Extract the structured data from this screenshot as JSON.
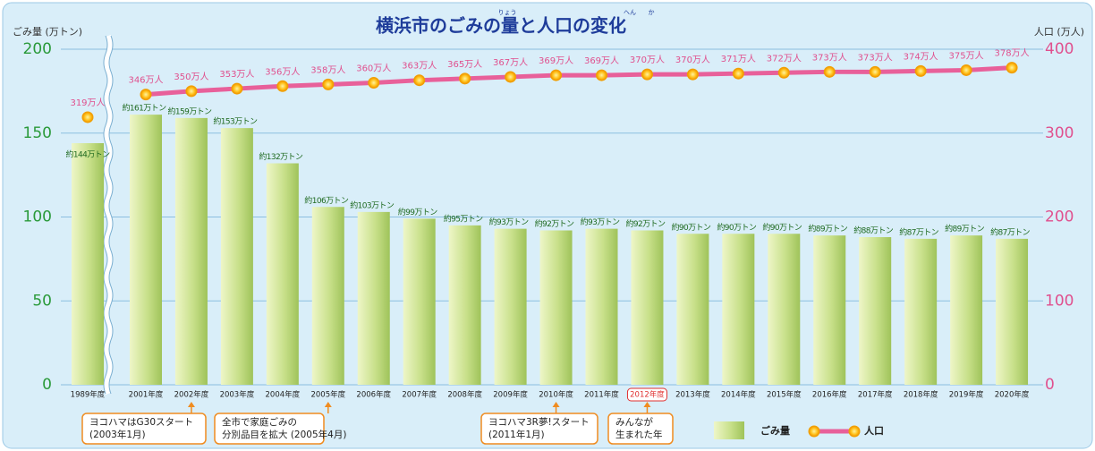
{
  "chart_data": {
    "type": "bar",
    "title": "横浜市のごみの量と人口の変化",
    "title_ruby": [
      "りょう",
      "へん",
      "か"
    ],
    "y_label": "ごみ量 (万トン)",
    "y2_label": "人口 (万人)",
    "categories": [
      "1989年度",
      "2001年度",
      "2002年度",
      "2003年度",
      "2004年度",
      "2005年度",
      "2006年度",
      "2007年度",
      "2008年度",
      "2009年度",
      "2010年度",
      "2011年度",
      "2012年度",
      "2013年度",
      "2014年度",
      "2015年度",
      "2016年度",
      "2017年度",
      "2018年度",
      "2019年度",
      "2020年度"
    ],
    "series": [
      {
        "name": "ごみ量",
        "color": "#c8e08a",
        "values": [
          144,
          161,
          159,
          153,
          132,
          106,
          103,
          99,
          95,
          93,
          92,
          93,
          92,
          90,
          90,
          90,
          89,
          88,
          87,
          89,
          87
        ],
        "value_labels": [
          "約144万トン",
          "約161万トン",
          "約159万トン",
          "約153万トン",
          "約132万トン",
          "約106万トン",
          "約103万トン",
          "約99万トン",
          "約95万トン",
          "約93万トン",
          "約92万トン",
          "約93万トン",
          "約92万トン",
          "約90万トン",
          "約90万トン",
          "約90万トン",
          "約89万トン",
          "約88万トン",
          "約87万トン",
          "約89万トン",
          "約87万トン"
        ]
      },
      {
        "name": "人口",
        "color": "#e8609a",
        "axis": "y2",
        "values": [
          319,
          346,
          350,
          353,
          356,
          358,
          360,
          363,
          365,
          367,
          369,
          369,
          370,
          370,
          371,
          372,
          373,
          373,
          374,
          375,
          378
        ],
        "value_labels": [
          "319万人",
          "346万人",
          "350万人",
          "353万人",
          "356万人",
          "358万人",
          "360万人",
          "363万人",
          "365万人",
          "367万人",
          "369万人",
          "369万人",
          "370万人",
          "370万人",
          "371万人",
          "372万人",
          "373万人",
          "373万人",
          "374万人",
          "375万人",
          "378万人"
        ]
      }
    ],
    "ylim": [
      0,
      200
    ],
    "yticks": [
      0,
      50,
      100,
      150,
      200
    ],
    "y2lim": [
      0,
      400
    ],
    "y2ticks": [
      0,
      100,
      200,
      300,
      400
    ],
    "grid": true,
    "highlight_category": 12,
    "annotations": [
      {
        "category": 2,
        "lines": [
          "ヨコハマはG30スタート",
          "(2003年1月)"
        ]
      },
      {
        "category": 5,
        "lines": [
          "全市で家庭ごみの",
          "分別品目を拡大 (2005年4月)"
        ]
      },
      {
        "category": 10,
        "lines": [
          "ヨコハマ3R夢!スタート",
          "(2011年1月)"
        ]
      },
      {
        "category": 12,
        "lines": [
          "みんなが",
          "生まれた年"
        ]
      }
    ]
  }
}
